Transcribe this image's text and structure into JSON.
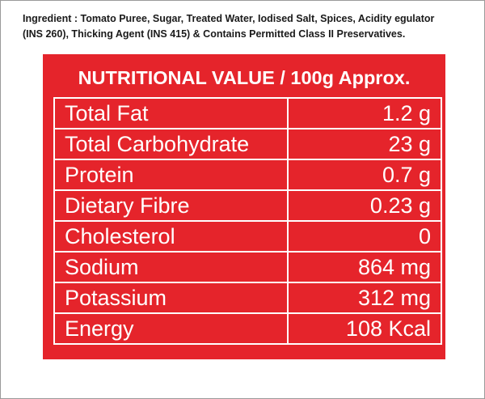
{
  "ingredients": {
    "lines": [
      "Ingredient : Tomato Puree, Sugar, Treated Water, Iodised Salt, Spices, Acidity egulator",
      "(INS 260), Thicking Agent (INS 415) & Contains Permitted Class II Preservatives."
    ]
  },
  "table": {
    "title": "NUTRITIONAL VALUE / 100g Approx.",
    "rows": [
      [
        "Total Fat",
        "1.2 g"
      ],
      [
        "Total Carbohydrate",
        "23 g"
      ],
      [
        "Protein",
        "0.7 g"
      ],
      [
        "Dietary Fibre",
        "0.23 g"
      ],
      [
        "Cholesterol",
        "0"
      ],
      [
        "Sodium",
        "864 mg"
      ],
      [
        "Potassium",
        "312 mg"
      ],
      [
        "Energy",
        "108 Kcal"
      ]
    ]
  }
}
